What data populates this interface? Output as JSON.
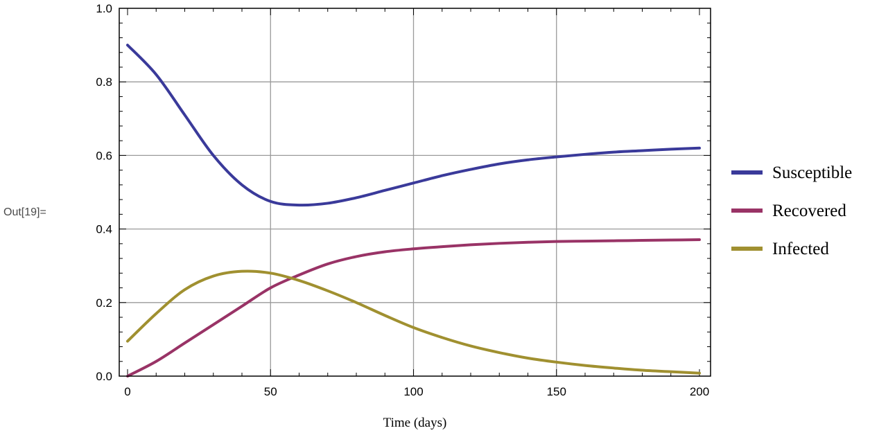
{
  "cell_label": "Out[19]=",
  "chart_data": {
    "type": "line",
    "title": "",
    "xlabel": "Time (days)",
    "ylabel": "",
    "xlim": [
      0,
      200
    ],
    "ylim": [
      0,
      1
    ],
    "x_ticks": [
      0,
      50,
      100,
      150,
      200
    ],
    "x_tick_labels": [
      "0",
      "50",
      "100",
      "150",
      "200"
    ],
    "y_ticks": [
      0,
      0.2,
      0.4,
      0.6,
      0.8,
      1.0
    ],
    "y_tick_labels": [
      "0.0",
      "0.2",
      "0.4",
      "0.6",
      "0.8",
      "1.0"
    ],
    "grid": true,
    "legend_position": "right",
    "x": [
      0,
      10,
      20,
      30,
      40,
      50,
      60,
      70,
      80,
      90,
      100,
      110,
      120,
      130,
      140,
      150,
      160,
      170,
      180,
      190,
      200
    ],
    "series": [
      {
        "name": "Susceptible",
        "color": "#3a3a9a",
        "values": [
          0.9,
          0.82,
          0.71,
          0.6,
          0.52,
          0.475,
          0.465,
          0.47,
          0.485,
          0.505,
          0.525,
          0.545,
          0.562,
          0.577,
          0.588,
          0.596,
          0.603,
          0.609,
          0.613,
          0.617,
          0.62
        ]
      },
      {
        "name": "Recovered",
        "color": "#993366",
        "values": [
          0.0,
          0.04,
          0.09,
          0.14,
          0.19,
          0.24,
          0.275,
          0.305,
          0.325,
          0.338,
          0.346,
          0.352,
          0.357,
          0.361,
          0.364,
          0.366,
          0.367,
          0.368,
          0.369,
          0.37,
          0.371
        ]
      },
      {
        "name": "Infected",
        "color": "#a09030",
        "values": [
          0.095,
          0.17,
          0.235,
          0.272,
          0.285,
          0.28,
          0.26,
          0.232,
          0.2,
          0.165,
          0.132,
          0.105,
          0.082,
          0.064,
          0.049,
          0.038,
          0.029,
          0.022,
          0.016,
          0.012,
          0.008
        ]
      }
    ]
  }
}
